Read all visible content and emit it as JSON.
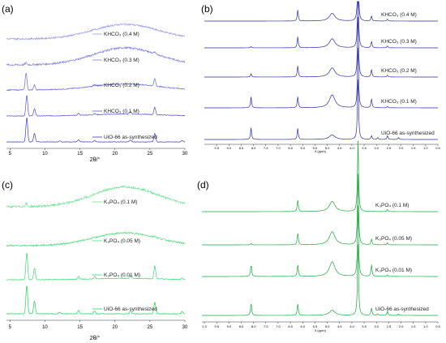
{
  "chart_data": [
    {
      "type": "line",
      "panel_label": "(a)",
      "xlabel": "2θ/°",
      "xlim": [
        4.5,
        30
      ],
      "x_ticks": [
        "5",
        "10",
        "15",
        "20",
        "25",
        "30"
      ],
      "color": "#3a3ad8",
      "traces": [
        {
          "name": "UiO-66 as-synthesized",
          "peaks": [
            [
              7.4,
              1.0
            ],
            [
              8.5,
              0.35
            ],
            [
              12.1,
              0.05
            ],
            [
              14.8,
              0.08
            ],
            [
              17.1,
              0.06
            ],
            [
              22.2,
              0.08
            ],
            [
              25.7,
              0.35
            ],
            [
              29.6,
              0.06
            ]
          ],
          "hump": 0.0
        },
        {
          "name": "KHCO₃ (0.1 M)",
          "peaks": [
            [
              7.4,
              0.85
            ],
            [
              8.5,
              0.3
            ],
            [
              14.8,
              0.08
            ],
            [
              17.1,
              0.05
            ],
            [
              22.2,
              0.1
            ],
            [
              25.7,
              0.3
            ]
          ],
          "hump": 0.08
        },
        {
          "name": "KHCO₃ (0.2 M)",
          "peaks": [
            [
              7.3,
              0.7
            ],
            [
              8.5,
              0.2
            ],
            [
              17.1,
              0.06
            ],
            [
              25.7,
              0.3
            ]
          ],
          "hump": 0.25
        },
        {
          "name": "KHCO₃ (0.3 M)",
          "peaks": [
            [
              7.3,
              0.08
            ],
            [
              25.7,
              0.05
            ]
          ],
          "hump": 0.7
        },
        {
          "name": "KHCO₃ (0.4 M)",
          "peaks": [],
          "hump": 0.6
        }
      ]
    },
    {
      "type": "line",
      "panel_label": "(b)",
      "xlabel": "δ (ppm)",
      "xlim": [
        10,
        0.5
      ],
      "x_ticks": [
        "9.5",
        "9.0",
        "8.5",
        "8.0",
        "7.5",
        "7.0",
        "6.5",
        "6.0",
        "5.5",
        "5.0",
        "4.5",
        "4.0",
        "3.5",
        "3.0",
        "2.5",
        "2.0",
        "1.5",
        "1.0",
        "0.5"
      ],
      "color": "#2a2aa8",
      "traces": [
        {
          "name": "UiO-66 as-synthesized",
          "peaks": [
            [
              8.1,
              0.9
            ],
            [
              6.2,
              0.85
            ],
            [
              4.8,
              0.35
            ],
            [
              3.75,
              5.0
            ],
            [
              3.2,
              0.3
            ],
            [
              2.95,
              0.15
            ],
            [
              2.55,
              0.3
            ],
            [
              2.1,
              0.15
            ]
          ]
        },
        {
          "name": "KHCO₃ (0.1 M)",
          "peaks": [
            [
              8.1,
              0.85
            ],
            [
              6.2,
              0.85
            ],
            [
              4.8,
              1.0
            ],
            [
              3.75,
              5.0
            ],
            [
              3.2,
              0.7
            ],
            [
              2.55,
              0.1
            ]
          ]
        },
        {
          "name": "KHCO₃ (0.2 M)",
          "peaks": [
            [
              8.1,
              0.25
            ],
            [
              6.2,
              0.85
            ],
            [
              4.8,
              0.7
            ],
            [
              3.75,
              5.0
            ],
            [
              3.2,
              0.6
            ],
            [
              2.55,
              0.15
            ]
          ]
        },
        {
          "name": "KHCO₃ (0.3 M)",
          "peaks": [
            [
              8.1,
              0.1
            ],
            [
              6.2,
              0.85
            ],
            [
              4.8,
              0.7
            ],
            [
              3.75,
              5.0
            ],
            [
              3.2,
              0.5
            ],
            [
              2.55,
              0.15
            ]
          ]
        },
        {
          "name": "KHCO₃ (0.4 M)",
          "peaks": [
            [
              6.2,
              0.85
            ],
            [
              4.8,
              0.6
            ],
            [
              3.75,
              5.0
            ],
            [
              3.2,
              0.4
            ],
            [
              2.55,
              0.15
            ]
          ]
        }
      ]
    },
    {
      "type": "line",
      "panel_label": "(c)",
      "xlabel": "2θ/°",
      "xlim": [
        4.5,
        30
      ],
      "x_ticks": [
        "5",
        "10",
        "15",
        "20",
        "25",
        "30"
      ],
      "color": "#1ed35a",
      "traces": [
        {
          "name": "UiO-66 as-synthesized",
          "peaks": [
            [
              7.4,
              1.0
            ],
            [
              8.5,
              0.45
            ],
            [
              12.1,
              0.06
            ],
            [
              14.8,
              0.12
            ],
            [
              17.1,
              0.1
            ],
            [
              22.2,
              0.1
            ],
            [
              25.7,
              0.4
            ],
            [
              29.6,
              0.08
            ]
          ],
          "hump": 0.0
        },
        {
          "name": "K₃PO₄ (0.01 M)",
          "peaks": [
            [
              7.4,
              0.95
            ],
            [
              8.5,
              0.4
            ],
            [
              14.8,
              0.1
            ],
            [
              17.1,
              0.08
            ],
            [
              22.2,
              0.1
            ],
            [
              25.7,
              0.45
            ],
            [
              29.6,
              0.05
            ]
          ],
          "hump": 0.05
        },
        {
          "name": "K₃PO₄ (0.05 M)",
          "peaks": [
            [
              25.7,
              0.05
            ]
          ],
          "hump": 0.45
        },
        {
          "name": "K₃PO₄ (0.1 M)",
          "peaks": [
            [
              7.3,
              0.12
            ]
          ],
          "hump": 0.7
        }
      ]
    },
    {
      "type": "line",
      "panel_label": "(d)",
      "xlabel": "δ (ppm)",
      "xlim": [
        10.1,
        0.5
      ],
      "x_ticks": [
        "1.0",
        "9.5",
        "9.0",
        "8.5",
        "8.0",
        "7.5",
        "7.0",
        "6.5",
        "6.0",
        "5.5",
        "5.0",
        "4.5",
        "4.0",
        "3.5",
        "3.0",
        "2.5",
        "2.0",
        "1.5",
        "1.0",
        "0.5"
      ],
      "color": "#1aa83c",
      "traces": [
        {
          "name": "UiO-66 as-synthesized",
          "peaks": [
            [
              8.1,
              0.9
            ],
            [
              6.2,
              0.85
            ],
            [
              4.8,
              0.35
            ],
            [
              3.75,
              5.0
            ],
            [
              3.2,
              0.5
            ],
            [
              2.95,
              0.1
            ],
            [
              2.55,
              0.3
            ],
            [
              2.1,
              0.1
            ]
          ]
        },
        {
          "name": "K₃PO₄ (0.01 M)",
          "peaks": [
            [
              8.1,
              0.85
            ],
            [
              6.2,
              0.85
            ],
            [
              4.8,
              1.0
            ],
            [
              3.75,
              5.0
            ],
            [
              3.2,
              0.8
            ],
            [
              2.55,
              0.1
            ]
          ]
        },
        {
          "name": "K₃PO₄ (0.05 M)",
          "peaks": [
            [
              8.1,
              0.1
            ],
            [
              6.2,
              0.85
            ],
            [
              4.8,
              0.9
            ],
            [
              3.75,
              5.0
            ],
            [
              3.2,
              0.4
            ],
            [
              2.55,
              0.15
            ]
          ]
        },
        {
          "name": "K₃PO₄ (0.1 M)",
          "peaks": [
            [
              6.2,
              0.85
            ],
            [
              4.8,
              0.7
            ],
            [
              3.75,
              5.0
            ],
            [
              2.55,
              0.15
            ]
          ]
        }
      ]
    }
  ]
}
